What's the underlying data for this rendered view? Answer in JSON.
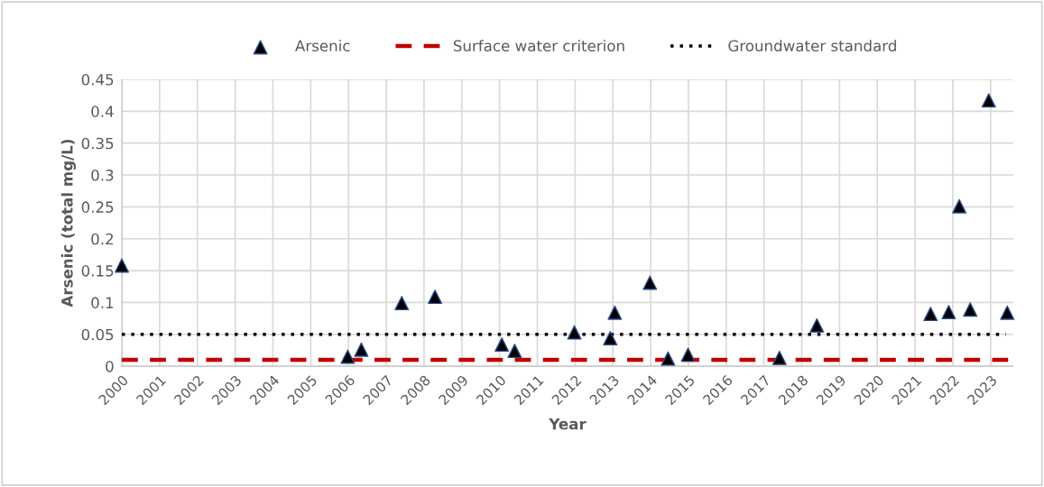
{
  "chart_data": {
    "type": "scatter",
    "xlabel": "Year",
    "ylabel": "Arsenic (total mg/L)",
    "xlim": [
      2000,
      2023.6
    ],
    "xticks": [
      2000,
      2001,
      2002,
      2003,
      2004,
      2005,
      2006,
      2007,
      2008,
      2009,
      2010,
      2011,
      2012,
      2013,
      2014,
      2015,
      2016,
      2017,
      2018,
      2019,
      2020,
      2021,
      2022,
      2023
    ],
    "ylim": [
      0,
      0.45
    ],
    "yticks": [
      0,
      0.05,
      0.1,
      0.15,
      0.2,
      0.25,
      0.3,
      0.35,
      0.4,
      0.45
    ],
    "grid": true,
    "legend": "top",
    "series": [
      {
        "name": "Arsenic",
        "marker": "triangle",
        "color": "#000000",
        "x": [
          2000.0,
          2005.98,
          2006.34,
          2007.41,
          2008.29,
          2010.06,
          2010.4,
          2011.98,
          2012.93,
          2013.05,
          2013.98,
          2014.46,
          2014.99,
          2017.41,
          2018.4,
          2021.41,
          2021.89,
          2022.17,
          2022.46,
          2022.95,
          2023.44
        ],
        "values": [
          0.158,
          0.015,
          0.026,
          0.099,
          0.109,
          0.034,
          0.024,
          0.053,
          0.044,
          0.084,
          0.131,
          0.012,
          0.018,
          0.013,
          0.064,
          0.082,
          0.085,
          0.251,
          0.089,
          0.417,
          0.084
        ]
      },
      {
        "name": "Surface water criterion",
        "type": "line",
        "line_style": "dashed",
        "color": "#c00000",
        "x": [
          2000,
          2023.5
        ],
        "values": [
          0.01,
          0.01
        ]
      },
      {
        "name": "Groundwater standard",
        "type": "line",
        "line_style": "dotted",
        "color": "#000000",
        "x": [
          2000,
          2023.4
        ],
        "values": [
          0.05,
          0.05
        ]
      }
    ]
  }
}
